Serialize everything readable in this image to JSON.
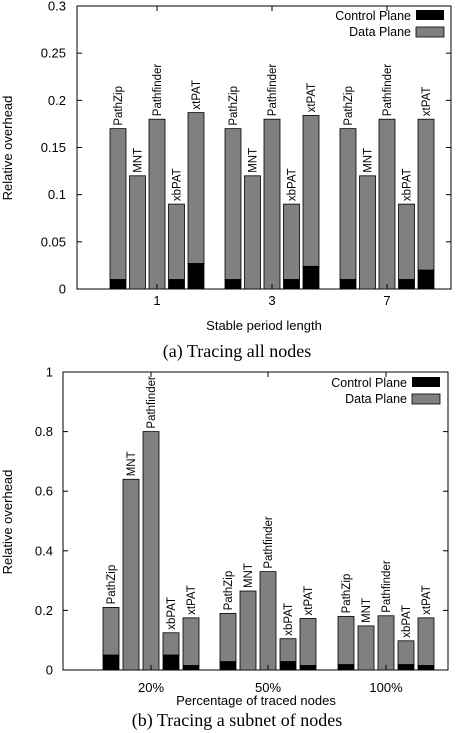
{
  "colors": {
    "control_plane": "#000000",
    "data_plane": "#808080",
    "axis": "#000000"
  },
  "chart_data": [
    {
      "type": "bar",
      "stacked": true,
      "caption": "(a) Tracing all nodes",
      "xlabel": "Stable period length",
      "ylabel": "Relative overhead",
      "ylim": [
        0,
        0.3
      ],
      "yticks": [
        "0",
        "0.05",
        "0.1",
        "0.15",
        "0.2",
        "0.25",
        "0.3"
      ],
      "yticks_values": [
        0,
        0.05,
        0.1,
        0.15,
        0.2,
        0.25,
        0.3
      ],
      "legend": {
        "position": "top-right",
        "entries": [
          "Control Plane",
          "Data Plane"
        ]
      },
      "groups": [
        "1",
        "3",
        "7"
      ],
      "bar_labels": [
        "PathZip",
        "MNT",
        "Pathfinder",
        "xbPAT",
        "xtPAT"
      ],
      "series": [
        {
          "name": "Control Plane",
          "values": [
            [
              0.01,
              0.0,
              0.0,
              0.01,
              0.027
            ],
            [
              0.01,
              0.0,
              0.0,
              0.01,
              0.024
            ],
            [
              0.01,
              0.0,
              0.0,
              0.01,
              0.02
            ]
          ]
        },
        {
          "name": "Data Plane",
          "values": [
            [
              0.16,
              0.12,
              0.18,
              0.08,
              0.16
            ],
            [
              0.16,
              0.12,
              0.18,
              0.08,
              0.16
            ],
            [
              0.16,
              0.12,
              0.18,
              0.08,
              0.16
            ]
          ]
        }
      ],
      "totals": [
        [
          0.17,
          0.12,
          0.18,
          0.09,
          0.187
        ],
        [
          0.17,
          0.12,
          0.18,
          0.09,
          0.184
        ],
        [
          0.17,
          0.12,
          0.18,
          0.09,
          0.18
        ]
      ]
    },
    {
      "type": "bar",
      "stacked": true,
      "caption": "(b) Tracing a subnet of nodes",
      "xlabel": "Percentage of traced nodes",
      "ylabel": "Relative overhead",
      "ylim": [
        0,
        1
      ],
      "yticks": [
        "0",
        "0.2",
        "0.4",
        "0.6",
        "0.8",
        "1"
      ],
      "yticks_values": [
        0,
        0.2,
        0.4,
        0.6,
        0.8,
        1
      ],
      "legend": {
        "position": "top-right",
        "entries": [
          "Control Plane",
          "Data Plane"
        ]
      },
      "groups": [
        "20%",
        "50%",
        "100%"
      ],
      "bar_labels": [
        "PathZip",
        "MNT",
        "Pathfinder",
        "xbPAT",
        "xtPAT"
      ],
      "series": [
        {
          "name": "Control Plane",
          "values": [
            [
              0.05,
              0.0,
              0.0,
              0.05,
              0.015
            ],
            [
              0.028,
              0.0,
              0.0,
              0.028,
              0.015
            ],
            [
              0.018,
              0.0,
              0.0,
              0.018,
              0.015
            ]
          ]
        },
        {
          "name": "Data Plane",
          "values": [
            [
              0.16,
              0.64,
              0.8,
              0.075,
              0.16
            ],
            [
              0.162,
              0.265,
              0.33,
              0.077,
              0.158
            ],
            [
              0.162,
              0.148,
              0.182,
              0.08,
              0.16
            ]
          ]
        }
      ],
      "totals": [
        [
          0.21,
          0.64,
          0.8,
          0.125,
          0.175
        ],
        [
          0.19,
          0.265,
          0.33,
          0.105,
          0.173
        ],
        [
          0.18,
          0.148,
          0.182,
          0.098,
          0.175
        ]
      ]
    }
  ]
}
